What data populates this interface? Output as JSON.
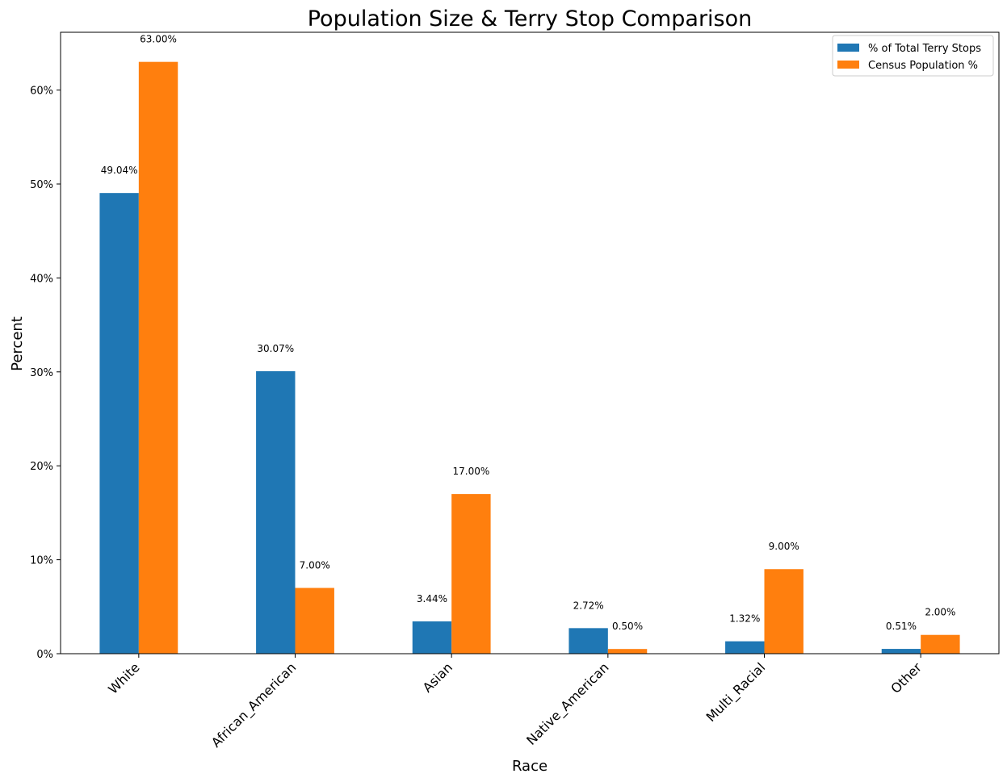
{
  "chart_data": {
    "type": "bar",
    "title": "Population Size & Terry Stop Comparison",
    "xlabel": "Race",
    "ylabel": "Percent",
    "categories": [
      "White",
      "African_American",
      "Asian",
      "Native_American",
      "Multi_Racial",
      "Other"
    ],
    "series": [
      {
        "name": "% of Total Terry Stops",
        "color": "#1f77b4",
        "values": [
          49.04,
          30.07,
          3.44,
          2.72,
          1.32,
          0.51
        ],
        "labels": [
          "49.04%",
          "30.07%",
          "3.44%",
          "2.72%",
          "1.32%",
          "0.51%"
        ]
      },
      {
        "name": "Census Population %",
        "color": "#ff7f0e",
        "values": [
          63.0,
          7.0,
          17.0,
          0.5,
          9.0,
          2.0
        ],
        "labels": [
          "63.00%",
          "7.00%",
          "17.00%",
          "0.50%",
          "9.00%",
          "2.00%"
        ]
      }
    ],
    "ylim": [
      0,
      66.15
    ],
    "yticks": [
      0,
      10,
      20,
      30,
      40,
      50,
      60
    ],
    "ytick_labels": [
      "0%",
      "10%",
      "20%",
      "30%",
      "40%",
      "50%",
      "60%"
    ],
    "legend_position": "top-right",
    "grid": false
  }
}
